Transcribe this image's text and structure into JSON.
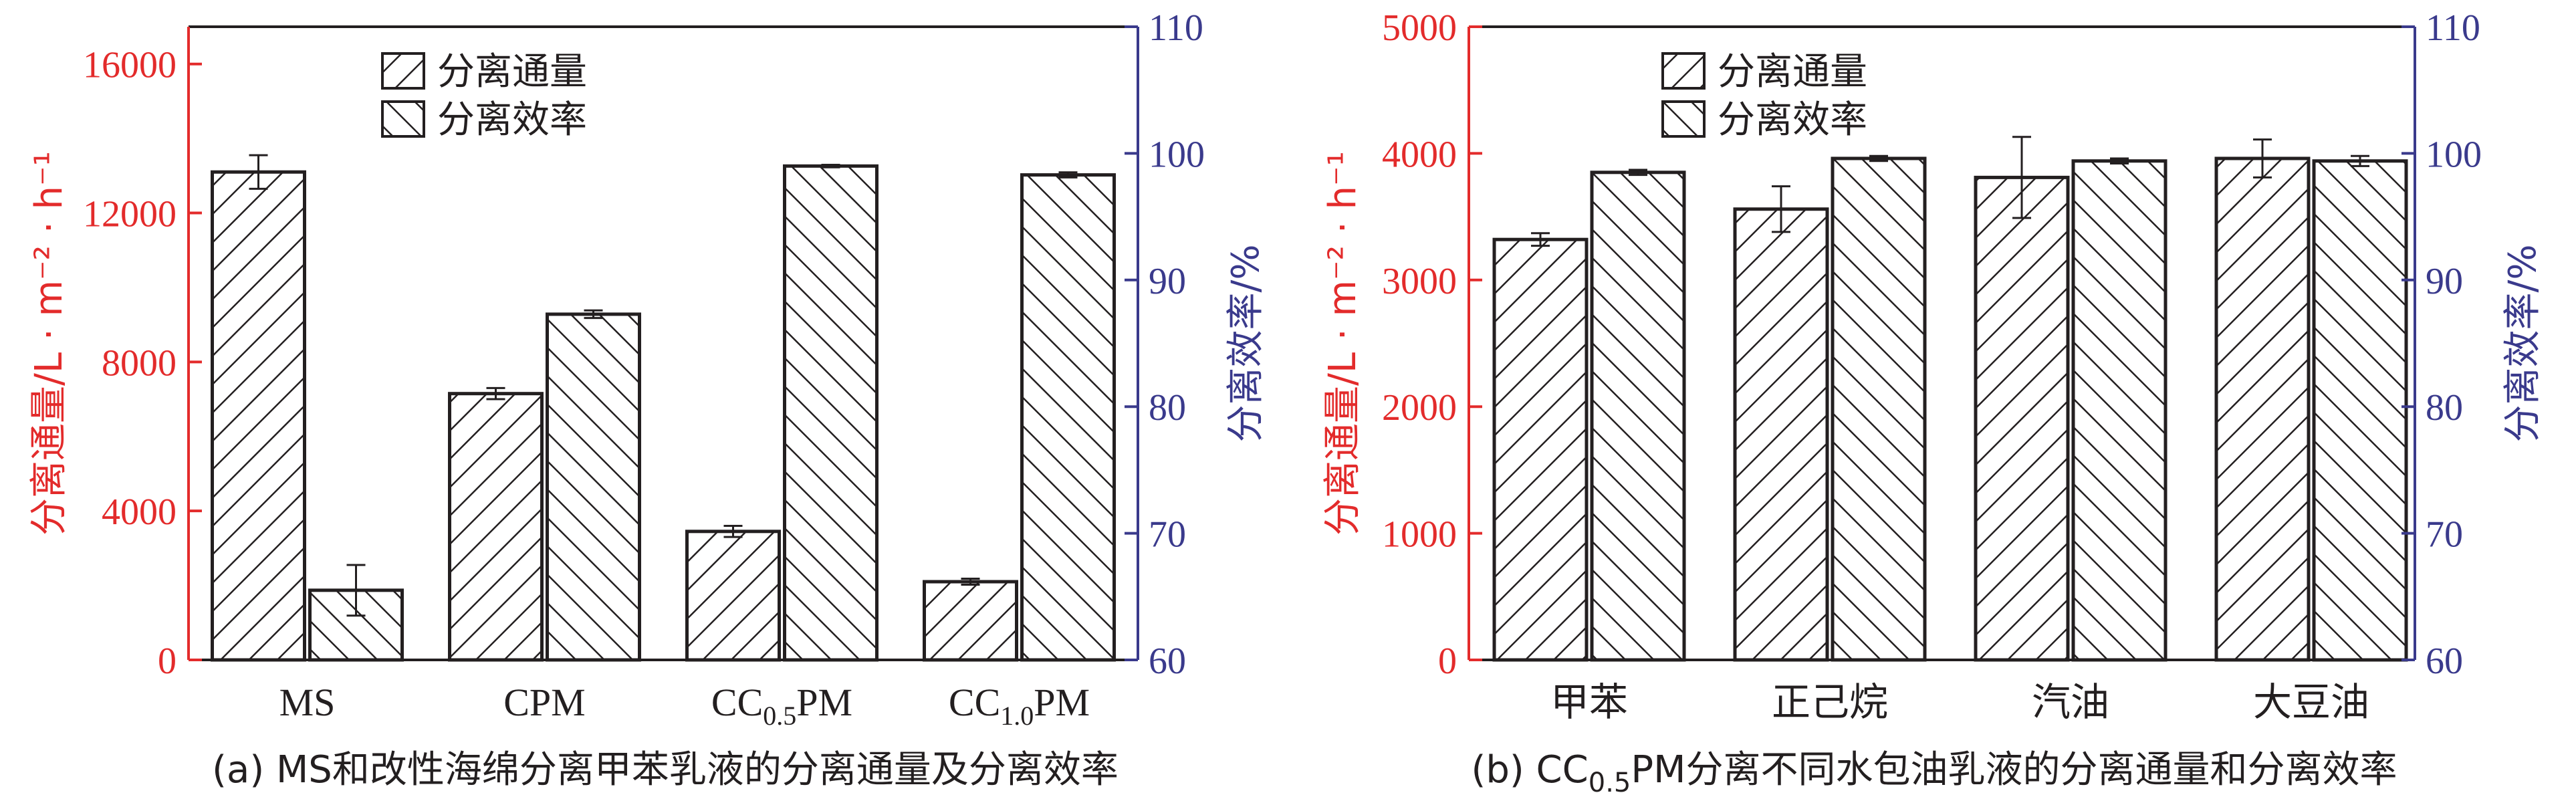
{
  "colors": {
    "left_axis": "#e32b2b",
    "right_axis": "#3a3a8c",
    "frame": "#231f20",
    "bar_fill": "#ffffff",
    "bar_hatch": "#231f20"
  },
  "legend": [
    "分离通量",
    "分离效率"
  ],
  "chart_data": [
    {
      "type": "bar",
      "caption": "(a) MS和改性海绵分离甲苯乳液的分离通量及分离效率",
      "categories": [
        "MS",
        "CPM",
        "CC0.5PM",
        "CC1.0PM"
      ],
      "category_labels": [
        {
          "base": "MS",
          "sub": "",
          "tail": ""
        },
        {
          "base": "CPM",
          "sub": "",
          "tail": ""
        },
        {
          "base": "CC",
          "sub": "0.5",
          "tail": "PM"
        },
        {
          "base": "CC",
          "sub": "1.0",
          "tail": "PM"
        }
      ],
      "ylabel_left": "分离通量/L · m⁻² · h⁻¹",
      "ylabel_right": "分离效率/%",
      "ylim_left": [
        0,
        17000
      ],
      "yticks_left": [
        0,
        4000,
        8000,
        12000,
        16000
      ],
      "ylim_right": [
        60,
        110
      ],
      "yticks_right": [
        60,
        70,
        80,
        90,
        100,
        110
      ],
      "legend_placement": "top-center",
      "grid": false,
      "series": [
        {
          "name": "分离通量",
          "axis": "left",
          "hatch": "forward",
          "values": [
            13100,
            7150,
            3450,
            2100
          ],
          "errors": [
            450,
            150,
            150,
            80
          ]
        },
        {
          "name": "分离效率",
          "axis": "right",
          "hatch": "back",
          "values": [
            65.5,
            87.3,
            99.0,
            98.3
          ],
          "errors": [
            2.0,
            0.3,
            0.1,
            0.2
          ]
        }
      ]
    },
    {
      "type": "bar",
      "caption": "(b) CC0.5PM分离不同水包油乳液的分离通量和分离效率",
      "caption_parts": {
        "prefix": "(b) CC",
        "sub": "0.5",
        "suffix": "PM分离不同水包油乳液的分离通量和分离效率"
      },
      "categories": [
        "甲苯",
        "正己烷",
        "汽油",
        "大豆油"
      ],
      "ylabel_left": "分离通量/L · m⁻² · h⁻¹",
      "ylabel_right": "分离效率/%",
      "ylim_left": [
        0,
        5000
      ],
      "yticks_left": [
        0,
        1000,
        2000,
        3000,
        4000,
        5000
      ],
      "ylim_right": [
        60,
        110
      ],
      "yticks_right": [
        60,
        70,
        80,
        90,
        100,
        110
      ],
      "legend_placement": "top-center",
      "grid": false,
      "series": [
        {
          "name": "分离通量",
          "axis": "left",
          "hatch": "forward",
          "values": [
            3320,
            3560,
            3810,
            3960
          ],
          "errors": [
            50,
            180,
            320,
            150
          ]
        },
        {
          "name": "分离效率",
          "axis": "right",
          "hatch": "back",
          "values": [
            98.5,
            99.6,
            99.4,
            99.4
          ],
          "errors": [
            0.2,
            0.2,
            0.2,
            0.4
          ]
        }
      ]
    }
  ]
}
